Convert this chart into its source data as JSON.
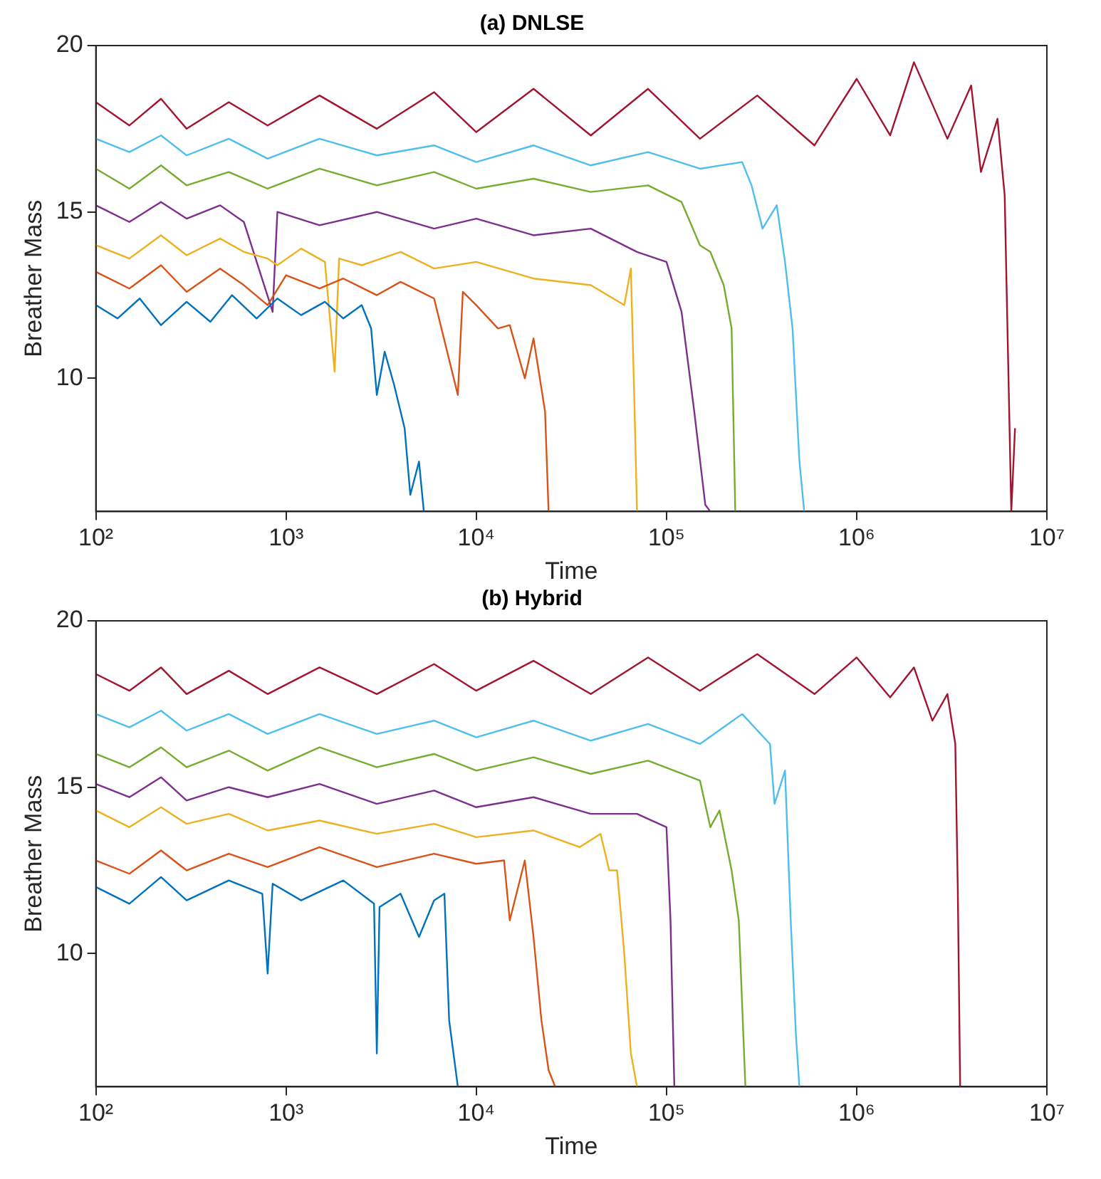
{
  "chart_data": [
    {
      "type": "line",
      "title": "(a) DNLSE",
      "xlabel": "Time",
      "ylabel": "Breather Mass",
      "log": "x",
      "grid": false,
      "xlim": [
        100,
        10000000
      ],
      "ylim": [
        6,
        20
      ],
      "xticks": [
        {
          "value": 100,
          "label": "10²"
        },
        {
          "value": 1000,
          "label": "10³"
        },
        {
          "value": 10000,
          "label": "10⁴"
        },
        {
          "value": 100000,
          "label": "10⁵"
        },
        {
          "value": 1000000,
          "label": "10⁶"
        },
        {
          "value": 10000000,
          "label": "10⁷"
        }
      ],
      "yticks": [
        10,
        15,
        20
      ],
      "series": [
        {
          "color": "#0072bd",
          "x": [
            100,
            130,
            170,
            220,
            300,
            400,
            520,
            700,
            900,
            1200,
            1600,
            2000,
            2500,
            2800,
            3000,
            3300,
            3700,
            4200,
            4500,
            5000,
            5300
          ],
          "values": [
            12.2,
            11.8,
            12.4,
            11.6,
            12.3,
            11.7,
            12.5,
            11.8,
            12.4,
            11.9,
            12.3,
            11.8,
            12.2,
            11.5,
            9.5,
            10.8,
            9.8,
            8.5,
            6.5,
            7.5,
            6
          ]
        },
        {
          "color": "#d95319",
          "x": [
            100,
            150,
            220,
            300,
            450,
            600,
            800,
            1000,
            1500,
            2000,
            3000,
            4000,
            6000,
            8000,
            8500,
            10000,
            13000,
            15000,
            18000,
            20000,
            23000,
            24000
          ],
          "values": [
            13.2,
            12.7,
            13.4,
            12.6,
            13.3,
            12.8,
            12.2,
            13.1,
            12.7,
            13.0,
            12.5,
            12.9,
            12.4,
            9.5,
            12.6,
            12.2,
            11.5,
            11.6,
            10,
            11.2,
            9,
            6
          ]
        },
        {
          "color": "#edb120",
          "x": [
            100,
            150,
            220,
            300,
            450,
            600,
            800,
            900,
            1200,
            1600,
            1800,
            1900,
            2500,
            4000,
            6000,
            10000,
            20000,
            40000,
            60000,
            65000,
            68000,
            70000
          ],
          "values": [
            14.0,
            13.6,
            14.3,
            13.7,
            14.2,
            13.8,
            13.6,
            13.4,
            13.9,
            13.5,
            10.2,
            13.6,
            13.4,
            13.8,
            13.3,
            13.5,
            13.0,
            12.8,
            12.2,
            13.3,
            9,
            6
          ]
        },
        {
          "color": "#7e2f8e",
          "x": [
            100,
            150,
            220,
            300,
            450,
            600,
            850,
            900,
            1500,
            3000,
            6000,
            10000,
            20000,
            40000,
            70000,
            100000,
            120000,
            140000,
            160000,
            170000
          ],
          "values": [
            15.2,
            14.7,
            15.3,
            14.8,
            15.2,
            14.7,
            12.0,
            15.0,
            14.6,
            15.0,
            14.5,
            14.8,
            14.3,
            14.5,
            13.8,
            13.5,
            12,
            9,
            6.2,
            6
          ]
        },
        {
          "color": "#77ac30",
          "x": [
            100,
            150,
            220,
            300,
            500,
            800,
            1500,
            3000,
            6000,
            10000,
            20000,
            40000,
            80000,
            120000,
            150000,
            170000,
            200000,
            220000,
            230000
          ],
          "values": [
            16.3,
            15.7,
            16.4,
            15.8,
            16.2,
            15.7,
            16.3,
            15.8,
            16.2,
            15.7,
            16.0,
            15.6,
            15.8,
            15.3,
            14.0,
            13.8,
            12.8,
            11.5,
            6
          ]
        },
        {
          "color": "#4dbeee",
          "x": [
            100,
            150,
            220,
            300,
            500,
            800,
            1500,
            3000,
            6000,
            10000,
            20000,
            40000,
            80000,
            150000,
            250000,
            280000,
            320000,
            380000,
            420000,
            460000,
            500000,
            530000
          ],
          "values": [
            17.2,
            16.8,
            17.3,
            16.7,
            17.2,
            16.6,
            17.2,
            16.7,
            17.0,
            16.5,
            17.0,
            16.4,
            16.8,
            16.3,
            16.5,
            15.8,
            14.5,
            15.2,
            13.5,
            11.5,
            7.5,
            6
          ]
        },
        {
          "color": "#a2142f",
          "x": [
            100,
            150,
            220,
            300,
            500,
            800,
            1500,
            3000,
            6000,
            10000,
            20000,
            40000,
            80000,
            150000,
            300000,
            600000,
            1000000,
            1500000,
            2000000,
            3000000,
            4000000,
            4500000,
            5500000,
            6000000,
            6500000,
            6800000
          ],
          "values": [
            18.3,
            17.6,
            18.4,
            17.5,
            18.3,
            17.6,
            18.5,
            17.5,
            18.6,
            17.4,
            18.7,
            17.3,
            18.7,
            17.2,
            18.5,
            17.0,
            19.0,
            17.3,
            19.5,
            17.2,
            18.8,
            16.2,
            17.8,
            15.5,
            6,
            8.5
          ]
        }
      ]
    },
    {
      "type": "line",
      "title": "(b) Hybrid",
      "xlabel": "Time",
      "ylabel": "Breather Mass",
      "log": "x",
      "grid": false,
      "xlim": [
        100,
        10000000
      ],
      "ylim": [
        6,
        20
      ],
      "xticks": [
        {
          "value": 100,
          "label": "10²"
        },
        {
          "value": 1000,
          "label": "10³"
        },
        {
          "value": 10000,
          "label": "10⁴"
        },
        {
          "value": 100000,
          "label": "10⁵"
        },
        {
          "value": 1000000,
          "label": "10⁶"
        },
        {
          "value": 10000000,
          "label": "10⁷"
        }
      ],
      "yticks": [
        10,
        15,
        20
      ],
      "series": [
        {
          "color": "#0072bd",
          "x": [
            100,
            150,
            220,
            300,
            500,
            750,
            800,
            850,
            1200,
            2000,
            2900,
            3000,
            3100,
            4000,
            5000,
            6000,
            6800,
            7200,
            8000
          ],
          "values": [
            12.0,
            11.5,
            12.3,
            11.6,
            12.2,
            11.8,
            9.4,
            12.1,
            11.6,
            12.2,
            11.5,
            7,
            11.4,
            11.8,
            10.5,
            11.6,
            11.8,
            8,
            6
          ]
        },
        {
          "color": "#d95319",
          "x": [
            100,
            150,
            220,
            300,
            500,
            800,
            1500,
            3000,
            6000,
            10000,
            14000,
            15000,
            18000,
            20000,
            22000,
            24000,
            26000
          ],
          "values": [
            12.8,
            12.4,
            13.1,
            12.5,
            13.0,
            12.6,
            13.2,
            12.6,
            13.0,
            12.7,
            12.8,
            11.0,
            12.8,
            10.5,
            8,
            6.5,
            6
          ]
        },
        {
          "color": "#edb120",
          "x": [
            100,
            150,
            220,
            300,
            500,
            800,
            1500,
            3000,
            6000,
            10000,
            20000,
            35000,
            45000,
            50000,
            55000,
            60000,
            65000,
            70000
          ],
          "values": [
            14.3,
            13.8,
            14.4,
            13.9,
            14.2,
            13.7,
            14.0,
            13.6,
            13.9,
            13.5,
            13.7,
            13.2,
            13.6,
            12.5,
            12.5,
            10,
            7,
            6
          ]
        },
        {
          "color": "#7e2f8e",
          "x": [
            100,
            150,
            220,
            300,
            500,
            800,
            1500,
            3000,
            6000,
            10000,
            20000,
            40000,
            70000,
            100000,
            105000,
            110000
          ],
          "values": [
            15.1,
            14.7,
            15.3,
            14.6,
            15.0,
            14.7,
            15.1,
            14.5,
            14.9,
            14.4,
            14.7,
            14.2,
            14.2,
            13.8,
            11,
            6
          ]
        },
        {
          "color": "#77ac30",
          "x": [
            100,
            150,
            220,
            300,
            500,
            800,
            1500,
            3000,
            6000,
            10000,
            20000,
            40000,
            80000,
            150000,
            170000,
            190000,
            220000,
            240000,
            260000
          ],
          "values": [
            16.0,
            15.6,
            16.2,
            15.6,
            16.1,
            15.5,
            16.2,
            15.6,
            16.0,
            15.5,
            15.9,
            15.4,
            15.8,
            15.2,
            13.8,
            14.3,
            12.5,
            11,
            6
          ]
        },
        {
          "color": "#4dbeee",
          "x": [
            100,
            150,
            220,
            300,
            500,
            800,
            1500,
            3000,
            6000,
            10000,
            20000,
            40000,
            80000,
            150000,
            250000,
            350000,
            370000,
            420000,
            450000,
            480000,
            500000
          ],
          "values": [
            17.2,
            16.8,
            17.3,
            16.7,
            17.2,
            16.6,
            17.2,
            16.6,
            17.0,
            16.5,
            17.0,
            16.4,
            16.9,
            16.3,
            17.2,
            16.3,
            14.5,
            15.5,
            11,
            7.5,
            6
          ]
        },
        {
          "color": "#a2142f",
          "x": [
            100,
            150,
            220,
            300,
            500,
            800,
            1500,
            3000,
            6000,
            10000,
            20000,
            40000,
            80000,
            150000,
            300000,
            600000,
            1000000,
            1500000,
            2000000,
            2500000,
            3000000,
            3300000,
            3400000,
            3500000
          ],
          "values": [
            18.4,
            17.9,
            18.6,
            17.8,
            18.5,
            17.8,
            18.6,
            17.8,
            18.7,
            17.9,
            18.8,
            17.8,
            18.9,
            17.9,
            19.0,
            17.8,
            18.9,
            17.7,
            18.6,
            17.0,
            17.8,
            16.3,
            12,
            6
          ]
        }
      ]
    }
  ]
}
